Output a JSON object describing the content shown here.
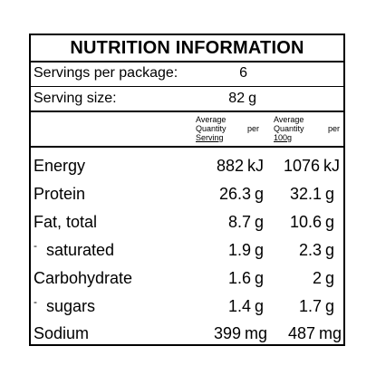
{
  "title": "NUTRITION INFORMATION",
  "servings_per_package": {
    "label": "Servings per package:",
    "value": "6"
  },
  "serving_size": {
    "label": "Serving size:",
    "value": "82",
    "unit": "g"
  },
  "column_headers": {
    "per_serving": {
      "line1": "Average",
      "line2a": "Quantity",
      "line2b": "per",
      "line3": "Serving"
    },
    "per_100g": {
      "line1": "Average",
      "line2a": "Quantity",
      "line2b": "per",
      "line3": "100g"
    }
  },
  "rows": [
    {
      "name": "Energy",
      "serving": "882",
      "serving_unit": "kJ",
      "per100": "1076",
      "per100_unit": "kJ"
    },
    {
      "name": "Protein",
      "serving": "26.3",
      "serving_unit": "g",
      "per100": "32.1",
      "per100_unit": "g"
    },
    {
      "name": "Fat, total",
      "serving": "8.7",
      "serving_unit": "g",
      "per100": "10.6",
      "per100_unit": "g"
    },
    {
      "name": "saturated",
      "prefix": "-",
      "serving": "1.9",
      "serving_unit": "g",
      "per100": "2.3",
      "per100_unit": "g"
    },
    {
      "name": "Carbohydrate",
      "serving": "1.6",
      "serving_unit": "g",
      "per100": "2",
      "per100_unit": "g"
    },
    {
      "name": "sugars",
      "prefix": "-",
      "serving": "1.4",
      "serving_unit": "g",
      "per100": "1.7",
      "per100_unit": "g"
    },
    {
      "name": "Sodium",
      "serving": "399",
      "serving_unit": "mg",
      "per100": "487",
      "per100_unit": "mg"
    }
  ]
}
